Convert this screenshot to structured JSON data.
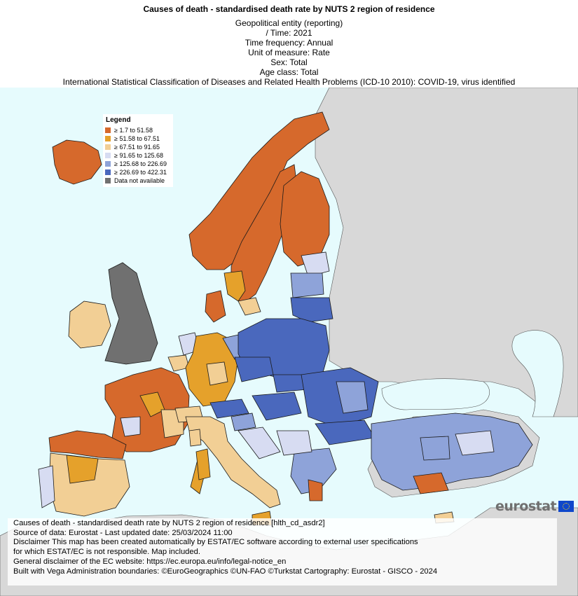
{
  "title": "Causes of death - standardised death rate by NUTS 2 region of residence",
  "meta": [
    "Geopolitical entity (reporting)",
    "/ Time:  2021",
    "Time frequency:  Annual",
    "Unit of measure:  Rate",
    "Sex:  Total",
    "Age class:  Total",
    "International Statistical Classification of Diseases and Related Health Problems (ICD-10 2010):  COVID-19, virus identified"
  ],
  "legend": {
    "title": "Legend",
    "items": [
      {
        "label": "≥ 1.7 to 51.58",
        "color": "#d6692c"
      },
      {
        "label": "≥ 51.58 to 67.51",
        "color": "#e5a12b"
      },
      {
        "label": "≥ 67.51 to 91.65",
        "color": "#f2cf95"
      },
      {
        "label": "≥ 91.65 to 125.68",
        "color": "#d7dcf2"
      },
      {
        "label": "≥ 125.68 to 226.69",
        "color": "#8ea3d9"
      },
      {
        "label": "≥ 226.69 to 422.31",
        "color": "#4a68bd"
      },
      {
        "label": "Data not available",
        "color": "#707070"
      }
    ]
  },
  "colors": {
    "sea": "#e6fbfd",
    "non_eu": "#d8d8d8",
    "border": "#1a1a1a"
  },
  "logo": {
    "text": "eurostat"
  },
  "footer": [
    "Causes of death - standardised death rate by NUTS 2 region of residence [hlth_cd_asdr2]",
    "Source of data: Eurostat - Last updated date: 25/03/2024 11:00",
    "Disclaimer This map has been created automatically by ESTAT/EC software according to external user specifications",
    "for which ESTAT/EC is not responsible. Map included.",
    "General disclaimer of the EC website: https://ec.europa.eu/info/legal-notice_en",
    "Built with Vega Administration boundaries: ©EuroGeographics ©UN-FAO ©Turkstat Cartography: Eurostat - GISCO - 2024"
  ]
}
